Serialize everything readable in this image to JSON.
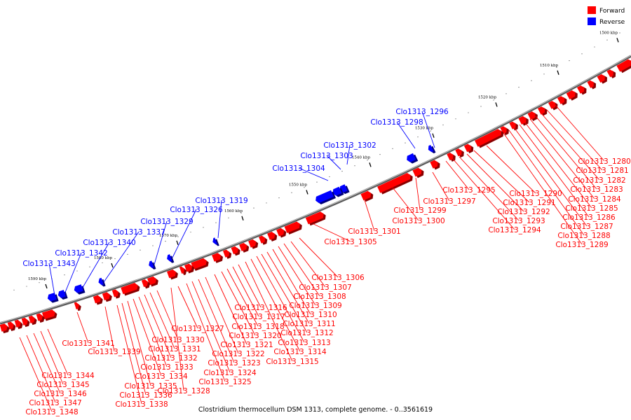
{
  "legend": [
    {
      "label": "Forward",
      "color": "#ff0000"
    },
    {
      "label": "Reverse",
      "color": "#0000ff"
    }
  ],
  "caption": "Clostridium thermocellum DSM 1313, complete genome. - 0..3561619",
  "colors": {
    "forward": "#ff0000",
    "reverse": "#0000ff",
    "backbone": "#808080"
  },
  "ticks": [
    "1500 kbp",
    "1510 kbp",
    "1520 kbp",
    "1530 kbp",
    "1540 kbp",
    "1550 kbp",
    "1560 kbp",
    "1570 kbp",
    "1580 kbp",
    "1590 kbp"
  ],
  "reverse_genes": [
    "Clo1313_1296",
    "Clo1313_1298",
    "Clo1313_1302",
    "Clo1313_1303",
    "Clo1313_1304",
    "Clo1313_1319",
    "Clo1313_1326",
    "Clo1313_1329",
    "Clo1313_1337",
    "Clo1313_1340",
    "Clo1313_1342",
    "Clo1313_1343"
  ],
  "forward_genes": [
    "Clo1313_1280",
    "Clo1313_1281",
    "Clo1313_1282",
    "Clo1313_1283",
    "Clo1313_1284",
    "Clo1313_1285",
    "Clo1313_1286",
    "Clo1313_1287",
    "Clo1313_1288",
    "Clo1313_1289",
    "Clo1313_1290",
    "Clo1313_1291",
    "Clo1313_1292",
    "Clo1313_1293",
    "Clo1313_1294",
    "Clo1313_1295",
    "Clo1313_1297",
    "Clo1313_1299",
    "Clo1313_1300",
    "Clo1313_1301",
    "Clo1313_1305",
    "Clo1313_1306",
    "Clo1313_1307",
    "Clo1313_1308",
    "Clo1313_1309",
    "Clo1313_1310",
    "Clo1313_1311",
    "Clo1313_1312",
    "Clo1313_1313",
    "Clo1313_1314",
    "Clo1313_1315",
    "Clo1313_1316",
    "Clo1313_1317",
    "Clo1313_1318",
    "Clo1313_1320",
    "Clo1313_1321",
    "Clo1313_1322",
    "Clo1313_1323",
    "Clo1313_1324",
    "Clo1313_1325",
    "Clo1313_1327",
    "Clo1313_1328",
    "Clo1313_1330",
    "Clo1313_1331",
    "Clo1313_1332",
    "Clo1313_1333",
    "Clo1313_1334",
    "Clo1313_1335",
    "Clo1313_1336",
    "Clo1313_1338",
    "Clo1313_1339",
    "Clo1313_1341",
    "Clo1313_1344",
    "Clo1313_1345",
    "Clo1313_1346",
    "Clo1313_1347",
    "Clo1313_1348"
  ]
}
